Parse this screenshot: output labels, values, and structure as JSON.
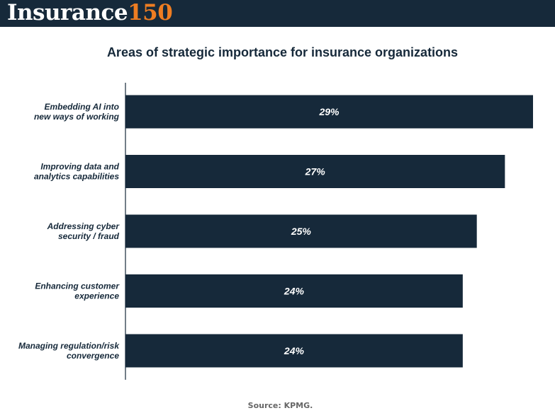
{
  "brand": {
    "word": "Insurance",
    "number": "150"
  },
  "colors": {
    "bar": "#16293a",
    "accent": "#ee7d22",
    "axis": "#16293a"
  },
  "chart_data": {
    "type": "bar",
    "orientation": "horizontal",
    "title": "Areas of strategic importance for insurance organizations",
    "categories": [
      [
        "Embedding AI into",
        "new ways of working"
      ],
      [
        "Improving data and",
        "analytics capabilities"
      ],
      [
        "Addressing cyber",
        "security / fraud"
      ],
      [
        "Enhancing customer",
        "experience"
      ],
      [
        "Managing regulation/risk",
        "convergence"
      ]
    ],
    "values": [
      29,
      27,
      25,
      24,
      24
    ],
    "value_labels": [
      "29%",
      "27%",
      "25%",
      "24%",
      "24%"
    ],
    "xlim": [
      0,
      29
    ],
    "grid": false
  },
  "source": "Source: KPMG."
}
